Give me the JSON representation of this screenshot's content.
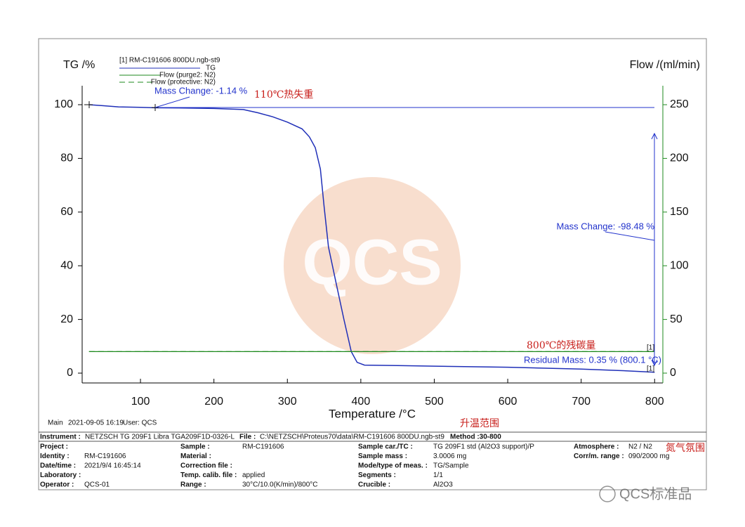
{
  "chart_data": {
    "type": "line",
    "y_label": "TG /%",
    "y2_label": "Flow /(ml/min)",
    "x_label": "Temperature /°C",
    "legend_title": "[1]  RM-C191606 800DU.ngb-st9",
    "x": [
      30,
      50,
      70,
      100,
      120,
      150,
      200,
      240,
      260,
      280,
      300,
      320,
      330,
      338,
      345,
      350,
      356,
      366,
      377,
      387,
      395,
      405,
      450,
      500,
      600,
      700,
      750,
      800
    ],
    "series": [
      {
        "name": "TG",
        "color": "#1f2fb8",
        "values": [
          100,
          99.6,
          99.2,
          99.0,
          98.86,
          98.8,
          98.6,
          98.2,
          97,
          95.5,
          93.5,
          91,
          88,
          84,
          76,
          62,
          47,
          34,
          20,
          8,
          4,
          3,
          2.8,
          2.6,
          2.2,
          1.5,
          1.0,
          0.35
        ]
      },
      {
        "name": "Flow (purge2: N2)",
        "color": "#1e8a1e",
        "axis": "y2",
        "values": [
          20,
          20,
          20,
          20,
          20,
          20,
          20,
          20,
          20,
          20,
          20,
          20,
          20,
          20,
          20,
          20,
          20,
          20,
          20,
          20,
          20,
          20,
          20,
          20,
          20,
          20,
          20,
          20
        ]
      },
      {
        "name": "Flow (protective: N2)",
        "color": "#1e8a1e",
        "axis": "y2",
        "dashed": true,
        "values": [
          20,
          20,
          20,
          20,
          20,
          20,
          20,
          20,
          20,
          20,
          20,
          20,
          20,
          20,
          20,
          20,
          20,
          20,
          20,
          20,
          20,
          20,
          20,
          20,
          20,
          20,
          20,
          20
        ]
      }
    ],
    "xlim": [
      20.6,
      811.2
    ],
    "xticks": [
      100,
      200,
      300,
      400,
      500,
      600,
      700,
      800
    ],
    "ylim": [
      -3.66,
      107.07
    ],
    "yticks": [
      0,
      20,
      40,
      60,
      80,
      100
    ],
    "y2lim": [
      -9.16,
      267.67
    ],
    "y2ticks": [
      0,
      50,
      100,
      150,
      200,
      250
    ],
    "annotations": {
      "mass_change_1": "Mass Change: -1.14 %",
      "note_110": "110℃热失重",
      "mass_change_2": "Mass Change: -98.48 %",
      "note_800": "800℃的残碳量",
      "residual": "Residual Mass: 0.35 % (800.1 °C)",
      "marker_flow": "[1]",
      "marker_tg": "[1]",
      "note_range": "升温范围",
      "note_atmosphere": "氮气氛围"
    },
    "watermark": "QCS"
  },
  "footer": {
    "main": "Main",
    "datetime": "2021-09-05 16:19",
    "user": "User: QCS"
  },
  "info": {
    "instrument_label": "Instrument :",
    "instrument": "NETZSCH TG 209F1 Libra TGA209F1D-0326-L",
    "file_label": "File :",
    "file": "C:\\NETZSCH\\Proteus70\\data\\RM-C191606 800DU.ngb-st9",
    "method": "Method :30-800",
    "columns": [
      [
        {
          "label": "Project :"
        },
        {
          "label": "Identity :",
          "value": "RM-C191606"
        },
        {
          "label": "Date/time :",
          "value": "2021/9/4 16:45:14"
        },
        {
          "label": "Laboratory :"
        },
        {
          "label": "Operator :",
          "value": "QCS-01"
        }
      ],
      [
        {
          "label": "Sample :",
          "value": "RM-C191606"
        },
        {
          "label": "Material :"
        },
        {
          "label": "Correction file :"
        },
        {
          "label": "Temp. calib. file :",
          "value": "applied"
        },
        {
          "label": "Range :",
          "value": "30°C/10.0(K/min)/800°C"
        }
      ],
      [
        {
          "label": "Sample car./TC :",
          "value": "TG 209F1 std (Al2O3 support)/P"
        },
        {
          "label": "Sample mass :",
          "value": "3.0006 mg"
        },
        {
          "label": "Mode/type of meas. :",
          "value": "TG/Sample"
        },
        {
          "label": "Segments :",
          "value": "1/1"
        },
        {
          "label": "Crucible :",
          "value": "Al2O3"
        }
      ],
      [
        {
          "label": "Atmosphere :",
          "value": "N2 / N2"
        },
        {
          "label": "Corr/m. range :",
          "value": "090/2000 mg"
        }
      ]
    ]
  },
  "brand": "QCS标准品"
}
